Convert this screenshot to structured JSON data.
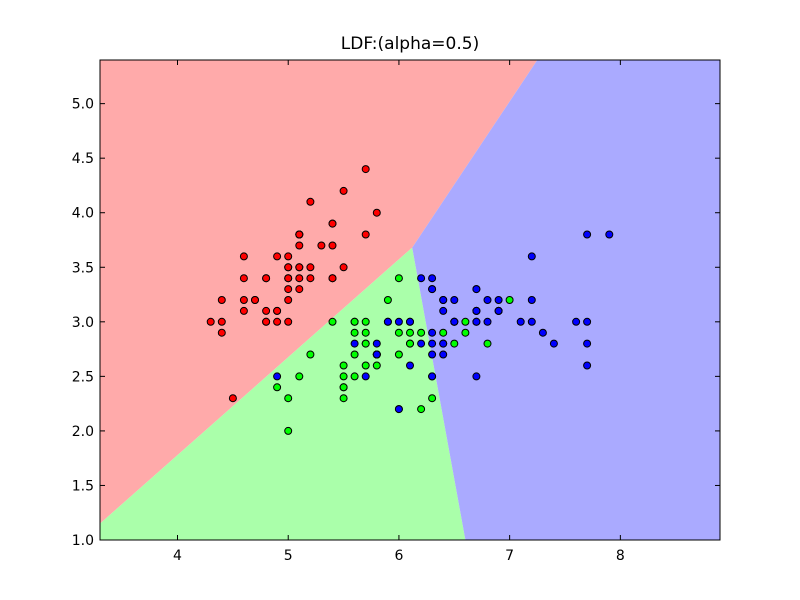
{
  "chart_data": {
    "type": "scatter",
    "title": "LDF:(alpha=0.5)",
    "xlabel": "",
    "ylabel": "",
    "xlim": [
      3.3,
      8.9
    ],
    "ylim": [
      1.0,
      5.4
    ],
    "x_ticks": [
      4,
      5,
      6,
      7,
      8
    ],
    "y_ticks": [
      1.0,
      1.5,
      2.0,
      2.5,
      3.0,
      3.5,
      4.0,
      4.5,
      5.0
    ],
    "x_tick_labels": [
      "4",
      "5",
      "6",
      "7",
      "8"
    ],
    "y_tick_labels": [
      "1.0",
      "1.5",
      "2.0",
      "2.5",
      "3.0",
      "3.5",
      "4.0",
      "4.5",
      "5.0"
    ],
    "grid": false,
    "legend": "none",
    "decision_regions": [
      {
        "class": "red",
        "color": "#ffaaaa",
        "polygon": [
          [
            3.3,
            5.4
          ],
          [
            7.25,
            5.4
          ],
          [
            6.12,
            3.68
          ],
          [
            3.3,
            1.15
          ]
        ]
      },
      {
        "class": "green",
        "color": "#aaffaa",
        "polygon": [
          [
            3.3,
            1.15
          ],
          [
            6.12,
            3.68
          ],
          [
            6.6,
            1.0
          ],
          [
            3.3,
            1.0
          ]
        ]
      },
      {
        "class": "blue",
        "color": "#aaaaff",
        "polygon": [
          [
            7.25,
            5.4
          ],
          [
            8.9,
            5.4
          ],
          [
            8.9,
            1.0
          ],
          [
            6.6,
            1.0
          ],
          [
            6.12,
            3.68
          ]
        ]
      }
    ],
    "series": [
      {
        "color": "#ff0000",
        "points": [
          [
            5.1,
            3.5
          ],
          [
            4.9,
            3.0
          ],
          [
            4.7,
            3.2
          ],
          [
            4.6,
            3.1
          ],
          [
            5.0,
            3.6
          ],
          [
            5.4,
            3.9
          ],
          [
            4.6,
            3.4
          ],
          [
            5.0,
            3.4
          ],
          [
            4.4,
            2.9
          ],
          [
            4.9,
            3.1
          ],
          [
            5.4,
            3.7
          ],
          [
            4.8,
            3.4
          ],
          [
            4.8,
            3.0
          ],
          [
            4.3,
            3.0
          ],
          [
            5.8,
            4.0
          ],
          [
            5.7,
            4.4
          ],
          [
            5.4,
            3.9
          ],
          [
            5.1,
            3.5
          ],
          [
            5.7,
            3.8
          ],
          [
            5.1,
            3.8
          ],
          [
            5.4,
            3.4
          ],
          [
            5.1,
            3.7
          ],
          [
            4.6,
            3.6
          ],
          [
            5.1,
            3.3
          ],
          [
            4.8,
            3.4
          ],
          [
            5.0,
            3.0
          ],
          [
            5.0,
            3.4
          ],
          [
            5.2,
            3.5
          ],
          [
            5.2,
            3.4
          ],
          [
            4.7,
            3.2
          ],
          [
            4.8,
            3.1
          ],
          [
            5.4,
            3.4
          ],
          [
            5.2,
            4.1
          ],
          [
            5.5,
            4.2
          ],
          [
            4.9,
            3.1
          ],
          [
            5.0,
            3.2
          ],
          [
            5.5,
            3.5
          ],
          [
            4.9,
            3.6
          ],
          [
            4.4,
            3.0
          ],
          [
            5.1,
            3.4
          ],
          [
            5.0,
            3.5
          ],
          [
            4.5,
            2.3
          ],
          [
            4.4,
            3.2
          ],
          [
            5.0,
            3.5
          ],
          [
            5.1,
            3.8
          ],
          [
            4.8,
            3.0
          ],
          [
            5.1,
            3.8
          ],
          [
            4.6,
            3.2
          ],
          [
            5.3,
            3.7
          ],
          [
            5.0,
            3.3
          ]
        ]
      },
      {
        "color": "#00ff00",
        "points": [
          [
            7.0,
            3.2
          ],
          [
            6.4,
            3.2
          ],
          [
            6.9,
            3.1
          ],
          [
            5.5,
            2.3
          ],
          [
            6.5,
            2.8
          ],
          [
            5.7,
            2.8
          ],
          [
            6.3,
            3.3
          ],
          [
            4.9,
            2.4
          ],
          [
            6.6,
            2.9
          ],
          [
            5.2,
            2.7
          ],
          [
            5.0,
            2.0
          ],
          [
            5.9,
            3.0
          ],
          [
            6.0,
            2.2
          ],
          [
            6.1,
            2.9
          ],
          [
            5.6,
            2.9
          ],
          [
            6.7,
            3.1
          ],
          [
            5.6,
            3.0
          ],
          [
            5.8,
            2.7
          ],
          [
            6.2,
            2.2
          ],
          [
            5.6,
            2.5
          ],
          [
            5.9,
            3.2
          ],
          [
            6.1,
            2.8
          ],
          [
            6.3,
            2.5
          ],
          [
            6.1,
            2.8
          ],
          [
            6.4,
            2.9
          ],
          [
            6.6,
            3.0
          ],
          [
            6.8,
            2.8
          ],
          [
            6.7,
            3.0
          ],
          [
            6.0,
            2.9
          ],
          [
            5.7,
            2.6
          ],
          [
            5.5,
            2.4
          ],
          [
            5.5,
            2.4
          ],
          [
            5.8,
            2.7
          ],
          [
            6.0,
            2.7
          ],
          [
            5.4,
            3.0
          ],
          [
            6.0,
            3.4
          ],
          [
            6.7,
            3.1
          ],
          [
            6.3,
            2.3
          ],
          [
            5.6,
            3.0
          ],
          [
            5.5,
            2.5
          ],
          [
            5.5,
            2.6
          ],
          [
            6.1,
            3.0
          ],
          [
            5.8,
            2.6
          ],
          [
            5.0,
            2.3
          ],
          [
            5.6,
            2.7
          ],
          [
            5.7,
            3.0
          ],
          [
            5.7,
            2.9
          ],
          [
            6.2,
            2.9
          ],
          [
            5.1,
            2.5
          ],
          [
            5.7,
            2.8
          ]
        ]
      },
      {
        "color": "#0000ff",
        "points": [
          [
            6.3,
            3.3
          ],
          [
            5.8,
            2.7
          ],
          [
            7.1,
            3.0
          ],
          [
            6.3,
            2.9
          ],
          [
            6.5,
            3.0
          ],
          [
            7.6,
            3.0
          ],
          [
            4.9,
            2.5
          ],
          [
            7.3,
            2.9
          ],
          [
            6.7,
            2.5
          ],
          [
            7.2,
            3.6
          ],
          [
            6.5,
            3.2
          ],
          [
            6.4,
            2.7
          ],
          [
            6.8,
            3.0
          ],
          [
            5.7,
            2.5
          ],
          [
            5.8,
            2.8
          ],
          [
            6.4,
            3.2
          ],
          [
            6.5,
            3.0
          ],
          [
            7.7,
            3.8
          ],
          [
            7.7,
            2.6
          ],
          [
            6.0,
            2.2
          ],
          [
            6.9,
            3.2
          ],
          [
            5.6,
            2.8
          ],
          [
            7.7,
            2.8
          ],
          [
            6.3,
            2.7
          ],
          [
            6.7,
            3.3
          ],
          [
            7.2,
            3.2
          ],
          [
            6.2,
            2.8
          ],
          [
            6.1,
            3.0
          ],
          [
            6.4,
            2.8
          ],
          [
            7.2,
            3.0
          ],
          [
            7.4,
            2.8
          ],
          [
            7.9,
            3.8
          ],
          [
            6.4,
            2.8
          ],
          [
            6.3,
            2.8
          ],
          [
            6.1,
            2.6
          ],
          [
            7.7,
            3.0
          ],
          [
            6.3,
            3.4
          ],
          [
            6.4,
            3.1
          ],
          [
            6.0,
            3.0
          ],
          [
            6.9,
            3.1
          ],
          [
            6.7,
            3.1
          ],
          [
            6.9,
            3.1
          ],
          [
            5.8,
            2.7
          ],
          [
            6.8,
            3.2
          ],
          [
            6.7,
            3.3
          ],
          [
            6.7,
            3.0
          ],
          [
            6.3,
            2.5
          ],
          [
            6.5,
            3.0
          ],
          [
            6.2,
            3.4
          ],
          [
            5.9,
            3.0
          ]
        ]
      }
    ]
  }
}
